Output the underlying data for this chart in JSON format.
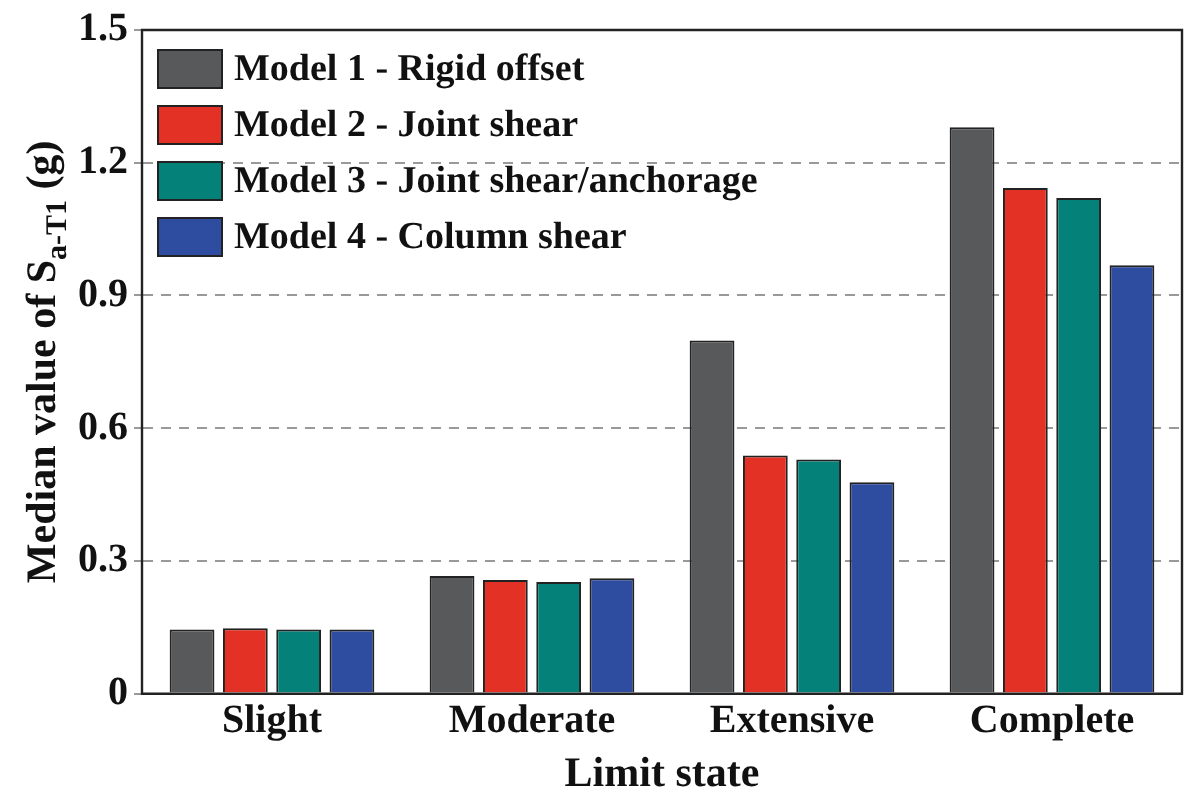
{
  "chart_data": {
    "type": "bar",
    "xlabel": "Limit state",
    "ylabel": "Median value of S$_{a-T1}$ (g)",
    "categories": [
      "Slight",
      "Moderate",
      "Extensive",
      "Complete"
    ],
    "series": [
      {
        "name": "Model 1 - Rigid offset",
        "color": "#58595b",
        "values": [
          0.145,
          0.266,
          0.798,
          1.28
        ]
      },
      {
        "name": "Model 2 - Joint shear",
        "color": "#e33126",
        "values": [
          0.148,
          0.257,
          0.538,
          1.143
        ]
      },
      {
        "name": "Model 3 - Joint shear/anchorage",
        "color": "#04827a",
        "values": [
          0.145,
          0.252,
          0.529,
          1.12
        ]
      },
      {
        "name": "Model 4 - Column shear",
        "color": "#2e4ca0",
        "values": [
          0.145,
          0.261,
          0.478,
          0.968
        ]
      }
    ],
    "ylim": [
      0,
      1.5
    ],
    "yticks": [
      0,
      0.3,
      0.6,
      0.9,
      1.2,
      1.5
    ],
    "grid": "y",
    "legend": "top left"
  }
}
